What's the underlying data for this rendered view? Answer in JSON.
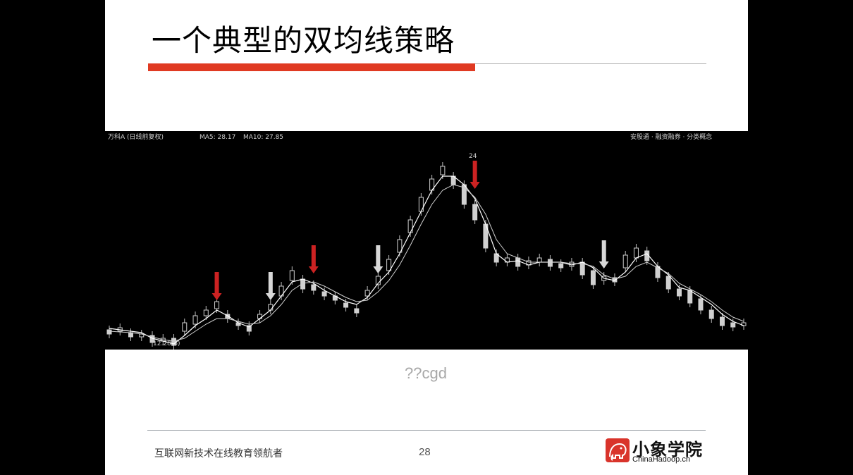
{
  "slide": {
    "title": "一个典型的双均线策略",
    "caption": "??cgd",
    "footer_text": "互联网新技术在线教育领航者",
    "page_number": "28",
    "logo_name": "小象学院",
    "logo_url_text": "ChinaHadoop.cn"
  },
  "chart_header": {
    "stock": "万科A (日线前复权)",
    "ma5": "MA5: 28.17",
    "ma10": "MA10: 27.85",
    "right_text": "安股通 · 融资融券 · 分类概念"
  },
  "chart_labels": {
    "low_price": "12.28(6)",
    "high_price": "24"
  },
  "colors": {
    "slide_bg": "#ffffff",
    "accent_red": "#e03a22",
    "chart_bg": "#000000",
    "sell_arrow": "#d8d8d8",
    "buy_arrow": "#cc2222"
  },
  "chart_data": {
    "type": "line",
    "x": [
      0,
      1,
      2,
      3,
      4,
      5,
      6,
      7,
      8,
      9,
      10,
      11,
      12,
      13,
      14,
      15,
      16,
      17,
      18,
      19,
      20,
      21,
      22,
      23,
      24,
      25,
      26,
      27,
      28,
      29,
      30,
      31,
      32,
      33,
      34,
      35,
      36,
      37,
      38,
      39,
      40,
      41,
      42,
      43,
      44,
      45,
      46,
      47,
      48,
      49,
      50,
      51,
      52,
      53,
      54,
      55,
      56,
      57,
      58,
      59
    ],
    "series": [
      {
        "name": "MA5",
        "values": [
          466,
          468,
          470,
          472,
          480,
          484,
          488,
          476,
          462,
          452,
          440,
          448,
          458,
          464,
          452,
          440,
          420,
          400,
          396,
          402,
          412,
          420,
          428,
          432,
          422,
          402,
          386,
          360,
          330,
          300,
          270,
          250,
          250,
          262,
          282,
          318,
          360,
          372,
          370,
          376,
          372,
          372,
          372,
          376,
          372,
          380,
          395,
          398,
          386,
          366,
          360,
          378,
          390,
          408,
          412,
          422,
          432,
          446,
          456,
          462
        ]
      },
      {
        "name": "MA10",
        "values": [
          470,
          471,
          472,
          474,
          478,
          482,
          484,
          480,
          470,
          460,
          452,
          452,
          456,
          460,
          458,
          448,
          432,
          412,
          402,
          400,
          406,
          414,
          422,
          428,
          426,
          414,
          398,
          376,
          348,
          318,
          290,
          270,
          262,
          266,
          280,
          304,
          340,
          360,
          366,
          372,
          372,
          372,
          372,
          374,
          374,
          378,
          390,
          396,
          392,
          378,
          372,
          380,
          388,
          402,
          410,
          418,
          428,
          440,
          450,
          456
        ]
      }
    ],
    "candles": [
      {
        "x": 0,
        "o": 468,
        "c": 474
      },
      {
        "x": 1,
        "o": 470,
        "c": 465
      },
      {
        "x": 2,
        "o": 472,
        "c": 478
      },
      {
        "x": 3,
        "o": 478,
        "c": 474
      },
      {
        "x": 4,
        "o": 476,
        "c": 486
      },
      {
        "x": 5,
        "o": 484,
        "c": 480
      },
      {
        "x": 6,
        "o": 480,
        "c": 490
      },
      {
        "x": 7,
        "o": 470,
        "c": 458
      },
      {
        "x": 8,
        "o": 460,
        "c": 448
      },
      {
        "x": 9,
        "o": 448,
        "c": 440
      },
      {
        "x": 10,
        "o": 438,
        "c": 428
      },
      {
        "x": 11,
        "o": 446,
        "c": 452
      },
      {
        "x": 12,
        "o": 458,
        "c": 462
      },
      {
        "x": 13,
        "o": 462,
        "c": 470
      },
      {
        "x": 14,
        "o": 452,
        "c": 446
      },
      {
        "x": 15,
        "o": 440,
        "c": 432
      },
      {
        "x": 16,
        "o": 420,
        "c": 406
      },
      {
        "x": 17,
        "o": 398,
        "c": 384
      },
      {
        "x": 18,
        "o": 396,
        "c": 410
      },
      {
        "x": 19,
        "o": 404,
        "c": 412
      },
      {
        "x": 20,
        "o": 414,
        "c": 420
      },
      {
        "x": 21,
        "o": 420,
        "c": 426
      },
      {
        "x": 22,
        "o": 430,
        "c": 436
      },
      {
        "x": 23,
        "o": 438,
        "c": 444
      },
      {
        "x": 24,
        "o": 420,
        "c": 412
      },
      {
        "x": 25,
        "o": 404,
        "c": 392
      },
      {
        "x": 26,
        "o": 384,
        "c": 368
      },
      {
        "x": 27,
        "o": 358,
        "c": 340
      },
      {
        "x": 28,
        "o": 330,
        "c": 312
      },
      {
        "x": 29,
        "o": 300,
        "c": 280
      },
      {
        "x": 30,
        "o": 270,
        "c": 254
      },
      {
        "x": 31,
        "o": 248,
        "c": 236
      },
      {
        "x": 32,
        "o": 250,
        "c": 262
      },
      {
        "x": 33,
        "o": 262,
        "c": 290
      },
      {
        "x": 34,
        "o": 290,
        "c": 312
      },
      {
        "x": 35,
        "o": 318,
        "c": 352
      },
      {
        "x": 36,
        "o": 360,
        "c": 372
      },
      {
        "x": 37,
        "o": 372,
        "c": 366
      },
      {
        "x": 38,
        "o": 366,
        "c": 378
      },
      {
        "x": 39,
        "o": 376,
        "c": 370
      },
      {
        "x": 40,
        "o": 372,
        "c": 366
      },
      {
        "x": 41,
        "o": 368,
        "c": 378
      },
      {
        "x": 42,
        "o": 374,
        "c": 380
      },
      {
        "x": 43,
        "o": 378,
        "c": 372
      },
      {
        "x": 44,
        "o": 372,
        "c": 390
      },
      {
        "x": 45,
        "o": 384,
        "c": 404
      },
      {
        "x": 46,
        "o": 398,
        "c": 392
      },
      {
        "x": 47,
        "o": 394,
        "c": 400
      },
      {
        "x": 48,
        "o": 380,
        "c": 362
      },
      {
        "x": 49,
        "o": 366,
        "c": 352
      },
      {
        "x": 50,
        "o": 356,
        "c": 370
      },
      {
        "x": 51,
        "o": 378,
        "c": 394
      },
      {
        "x": 52,
        "o": 392,
        "c": 410
      },
      {
        "x": 53,
        "o": 410,
        "c": 420
      },
      {
        "x": 54,
        "o": 412,
        "c": 430
      },
      {
        "x": 55,
        "o": 424,
        "c": 440
      },
      {
        "x": 56,
        "o": 440,
        "c": 452
      },
      {
        "x": 57,
        "o": 450,
        "c": 462
      },
      {
        "x": 58,
        "o": 458,
        "c": 464
      },
      {
        "x": 59,
        "o": 462,
        "c": 458
      }
    ],
    "signals": [
      {
        "x": 10,
        "kind": "buy"
      },
      {
        "x": 15,
        "kind": "sell"
      },
      {
        "x": 19,
        "kind": "buy"
      },
      {
        "x": 25,
        "kind": "sell"
      },
      {
        "x": 34,
        "kind": "buy"
      },
      {
        "x": 46,
        "kind": "sell"
      }
    ],
    "grid": false
  }
}
